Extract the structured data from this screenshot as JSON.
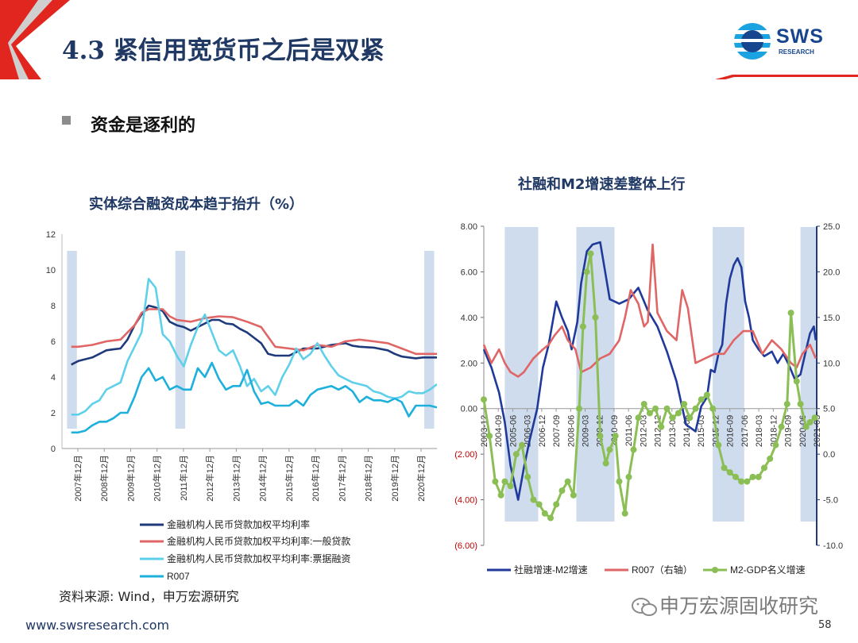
{
  "slide": {
    "title": "4.3 紧信用宽货币之后是双紧",
    "bullet": "资金是逐利的",
    "source": "资料来源: Wind，申万宏源研究",
    "footer_url": "www.swsresearch.com",
    "page_number": "58",
    "watermark": "申万宏源固收研究"
  },
  "logo": {
    "text": "SWS",
    "subtext": "RESEARCH"
  },
  "colors": {
    "brand_red": "#e0261f",
    "brand_blue": "#1f3864",
    "shade": "#c5d6ea"
  },
  "chart_data": [
    {
      "type": "line",
      "title": "实体综合融资成本趋于抬升（%）",
      "ylim": [
        0,
        12
      ],
      "yticks": [
        "0",
        "2",
        "4",
        "6",
        "8",
        "10",
        "12"
      ],
      "x_tick_labels": [
        "2007年12月",
        "2008年12月",
        "2009年12月",
        "2010年12月",
        "2011年12月",
        "2012年12月",
        "2013年12月",
        "2014年12月",
        "2015年12月",
        "2016年12月",
        "2017年12月",
        "2018年12月",
        "2019年12月",
        "2020年12月"
      ],
      "x_range": [
        2007.92,
        2021.25
      ],
      "shaded_ranges": [
        [
          2008.1,
          2008.45
        ],
        [
          2011.95,
          2012.3
        ],
        [
          2020.8,
          2021.15
        ]
      ],
      "series": [
        {
          "name": "金融机构人民币贷款加权平均利率",
          "color": "#1f3a7a",
          "x": [
            2008.25,
            2008.5,
            2008.75,
            2009.0,
            2009.25,
            2009.5,
            2009.75,
            2010.0,
            2010.25,
            2010.5,
            2010.75,
            2011.0,
            2011.25,
            2011.5,
            2011.75,
            2012.0,
            2012.25,
            2012.5,
            2012.75,
            2013.0,
            2013.25,
            2013.5,
            2013.75,
            2014.0,
            2014.25,
            2014.5,
            2014.75,
            2015.0,
            2015.25,
            2015.5,
            2015.75,
            2016.0,
            2016.5,
            2017.0,
            2017.5,
            2018.0,
            2018.25,
            2018.5,
            2019.0,
            2019.5,
            2019.75,
            2020.0,
            2020.25,
            2020.5,
            2020.75,
            2021.0,
            2021.25
          ],
          "y": [
            4.7,
            4.9,
            5.0,
            5.1,
            5.3,
            5.5,
            5.55,
            5.6,
            6.1,
            6.9,
            7.5,
            8.0,
            7.9,
            7.7,
            7.1,
            6.9,
            6.8,
            6.6,
            6.8,
            7.0,
            7.2,
            7.2,
            7.0,
            6.95,
            6.7,
            6.5,
            6.2,
            5.9,
            5.3,
            5.2,
            5.2,
            5.2,
            5.6,
            5.6,
            5.8,
            5.9,
            5.75,
            5.7,
            5.65,
            5.5,
            5.3,
            5.15,
            5.1,
            5.05,
            5.1,
            5.1,
            5.1
          ]
        },
        {
          "name": "金融机构人民币贷款加权平均利率:一般贷款",
          "color": "#e06666",
          "x": [
            2008.25,
            2008.5,
            2009.0,
            2009.5,
            2010.0,
            2010.5,
            2010.75,
            2011.0,
            2011.5,
            2011.75,
            2012.0,
            2012.5,
            2013.0,
            2013.5,
            2014.0,
            2014.5,
            2015.0,
            2015.5,
            2016.0,
            2016.5,
            2017.0,
            2017.5,
            2018.0,
            2018.5,
            2019.0,
            2019.5,
            2020.0,
            2020.5,
            2021.0,
            2021.25
          ],
          "y": [
            5.7,
            5.7,
            5.8,
            6.0,
            6.1,
            6.9,
            7.6,
            7.8,
            7.8,
            7.4,
            7.2,
            7.1,
            7.3,
            7.4,
            7.35,
            7.1,
            6.8,
            5.7,
            5.6,
            5.5,
            5.8,
            5.7,
            6.0,
            6.1,
            6.0,
            5.9,
            5.6,
            5.3,
            5.3,
            5.3
          ]
        },
        {
          "name": "金融机构人民币贷款加权平均利率:票据融资",
          "color": "#5fd0ea",
          "x": [
            2008.25,
            2008.5,
            2008.75,
            2009.0,
            2009.25,
            2009.5,
            2009.75,
            2010.0,
            2010.25,
            2010.5,
            2010.75,
            2011.0,
            2011.25,
            2011.5,
            2011.75,
            2012.0,
            2012.25,
            2012.5,
            2012.75,
            2013.0,
            2013.25,
            2013.5,
            2013.75,
            2014.0,
            2014.25,
            2014.5,
            2014.75,
            2015.0,
            2015.25,
            2015.5,
            2015.75,
            2016.0,
            2016.25,
            2016.5,
            2016.75,
            2017.0,
            2017.25,
            2017.5,
            2017.75,
            2018.0,
            2018.25,
            2018.5,
            2018.75,
            2019.0,
            2019.25,
            2019.5,
            2019.75,
            2020.0,
            2020.25,
            2020.5,
            2020.75,
            2021.0,
            2021.25
          ],
          "y": [
            1.9,
            1.9,
            2.1,
            2.5,
            2.7,
            3.3,
            3.5,
            3.7,
            4.9,
            5.7,
            6.5,
            9.5,
            9.0,
            6.4,
            6.0,
            5.2,
            4.6,
            5.8,
            6.8,
            7.5,
            6.5,
            5.5,
            5.2,
            5.5,
            4.6,
            3.5,
            3.9,
            3.2,
            3.5,
            3.0,
            4.0,
            4.7,
            5.6,
            5.0,
            5.3,
            5.9,
            5.2,
            4.6,
            4.1,
            3.9,
            3.7,
            3.6,
            3.5,
            3.2,
            3.1,
            2.9,
            2.8,
            2.9,
            3.2,
            3.1,
            3.1,
            3.3,
            3.6
          ]
        },
        {
          "name": "R007",
          "color": "#1eb0dc",
          "x": [
            2008.25,
            2008.5,
            2008.75,
            2009.0,
            2009.25,
            2009.5,
            2009.75,
            2010.0,
            2010.25,
            2010.5,
            2010.75,
            2011.0,
            2011.25,
            2011.5,
            2011.75,
            2012.0,
            2012.25,
            2012.5,
            2012.75,
            2013.0,
            2013.25,
            2013.5,
            2013.75,
            2014.0,
            2014.25,
            2014.5,
            2014.75,
            2015.0,
            2015.25,
            2015.5,
            2015.75,
            2016.0,
            2016.25,
            2016.5,
            2016.75,
            2017.0,
            2017.25,
            2017.5,
            2017.75,
            2018.0,
            2018.25,
            2018.5,
            2018.75,
            2019.0,
            2019.25,
            2019.5,
            2019.75,
            2020.0,
            2020.25,
            2020.5,
            2020.75,
            2021.0,
            2021.25
          ],
          "y": [
            0.9,
            0.9,
            1.0,
            1.3,
            1.5,
            1.5,
            1.7,
            2.0,
            2.0,
            2.9,
            4.0,
            4.5,
            3.8,
            4.0,
            3.3,
            3.5,
            3.3,
            3.3,
            4.5,
            4.0,
            4.8,
            3.9,
            3.3,
            3.5,
            3.5,
            4.4,
            3.2,
            2.5,
            2.6,
            2.4,
            2.4,
            2.4,
            2.7,
            2.4,
            3.0,
            3.3,
            3.4,
            3.5,
            3.3,
            3.5,
            3.2,
            2.6,
            2.9,
            2.7,
            2.7,
            2.6,
            2.8,
            2.6,
            1.8,
            2.4,
            2.4,
            2.4,
            2.3
          ]
        }
      ]
    },
    {
      "type": "line",
      "title": "社融和M2增速差整体上行",
      "ylim": [
        -6,
        8
      ],
      "yticks": [
        "(6.00)",
        "(4.00)",
        "(2.00)",
        "0.00",
        "2.00",
        "4.00",
        "6.00",
        "8.00"
      ],
      "y2lim": [
        -10,
        25
      ],
      "y2ticks": [
        "-10.0",
        "-5.0",
        "0.0",
        "5.0",
        "10.0",
        "15.0",
        "20.0",
        "25.0"
      ],
      "x_tick_labels": [
        "2003-12",
        "2004-09",
        "2005-06",
        "2006-03",
        "2006-12",
        "2007-09",
        "2008-06",
        "2009-03",
        "2009-12",
        "2010-09",
        "2011-06",
        "2012-03",
        "2012-12",
        "2013-09",
        "2014-06",
        "2015-03",
        "2015-12",
        "2016-09",
        "2017-06",
        "2018-03",
        "2018-12",
        "2019-09",
        "2020-06",
        "2021-03"
      ],
      "x_range": [
        2003.9,
        2021.35
      ],
      "shaded_ranges": [
        [
          2005.0,
          2006.75
        ],
        [
          2008.75,
          2010.75
        ],
        [
          2015.9,
          2017.55
        ],
        [
          2020.5,
          2021.3
        ]
      ],
      "series": [
        {
          "name": "社融增速-M2增速",
          "color": "#1f3a9a",
          "axis": "left",
          "x": [
            2003.9,
            2004.3,
            2004.7,
            2005.0,
            2005.3,
            2005.7,
            2006.0,
            2006.3,
            2006.7,
            2007.0,
            2007.3,
            2007.7,
            2008.0,
            2008.3,
            2008.5,
            2008.8,
            2009.0,
            2009.3,
            2009.6,
            2010.0,
            2010.5,
            2011.0,
            2011.5,
            2012.0,
            2012.5,
            2013.0,
            2013.5,
            2014.0,
            2014.5,
            2015.0,
            2015.3,
            2015.6,
            2015.8,
            2016.0,
            2016.2,
            2016.4,
            2016.6,
            2016.8,
            2017.0,
            2017.2,
            2017.4,
            2017.6,
            2017.8,
            2018.0,
            2018.3,
            2018.6,
            2019.0,
            2019.3,
            2019.6,
            2019.9,
            2020.2,
            2020.5,
            2020.8,
            2021.0,
            2021.2,
            2021.3
          ],
          "y": [
            2.6,
            1.8,
            0.7,
            -0.6,
            -2.5,
            -4.0,
            -2.6,
            -1.4,
            0.0,
            1.8,
            2.8,
            4.7,
            4.0,
            3.4,
            2.6,
            3.8,
            5.5,
            6.9,
            7.2,
            7.3,
            4.8,
            4.6,
            4.8,
            5.3,
            4.3,
            3.6,
            2.5,
            1.2,
            -0.7,
            -1.0,
            0.1,
            0.5,
            1.7,
            1.6,
            2.4,
            2.8,
            4.6,
            5.7,
            6.3,
            6.6,
            6.2,
            4.7,
            4.0,
            3.0,
            2.6,
            2.3,
            2.5,
            2.0,
            2.4,
            1.9,
            1.3,
            1.5,
            2.6,
            3.3,
            3.6,
            3.0
          ]
        },
        {
          "name": "R007（右轴）",
          "color": "#e06666",
          "axis": "right",
          "x": [
            2003.9,
            2004.3,
            2004.7,
            2005.0,
            2005.3,
            2005.7,
            2006.0,
            2006.5,
            2007.0,
            2007.3,
            2007.6,
            2008.0,
            2008.3,
            2008.7,
            2009.0,
            2009.5,
            2010.0,
            2010.5,
            2011.0,
            2011.3,
            2011.6,
            2012.0,
            2012.3,
            2012.5,
            2012.75,
            2013.0,
            2013.5,
            2014.0,
            2014.3,
            2014.6,
            2015.0,
            2015.5,
            2016.0,
            2016.5,
            2017.0,
            2017.5,
            2018.0,
            2018.5,
            2019.0,
            2019.5,
            2020.0,
            2020.3,
            2020.6,
            2021.0,
            2021.3
          ],
          "y": [
            12.0,
            10.0,
            11.5,
            10.0,
            9.0,
            8.5,
            9.0,
            10.5,
            11.5,
            12.0,
            13.0,
            14.0,
            12.5,
            11.5,
            9.0,
            9.5,
            10.5,
            11.0,
            12.5,
            15.0,
            18.0,
            16.5,
            14.0,
            14.5,
            23.0,
            15.5,
            13.5,
            12.5,
            18.0,
            16.0,
            10.0,
            10.5,
            11.0,
            11.0,
            12.5,
            13.5,
            13.5,
            11.0,
            12.5,
            11.5,
            10.0,
            9.5,
            11.0,
            12.0,
            10.5
          ]
        },
        {
          "name": "M2-GDP名义增速",
          "color": "#8bbf56",
          "axis": "right",
          "x": [
            2003.9,
            2004.2,
            2004.5,
            2004.8,
            2005.0,
            2005.3,
            2005.6,
            2005.9,
            2006.2,
            2006.5,
            2006.8,
            2007.1,
            2007.4,
            2007.7,
            2008.0,
            2008.3,
            2008.6,
            2008.9,
            2009.1,
            2009.3,
            2009.5,
            2009.75,
            2010.0,
            2010.3,
            2010.5,
            2010.8,
            2011.0,
            2011.3,
            2011.5,
            2011.75,
            2012.0,
            2012.3,
            2012.6,
            2012.9,
            2013.2,
            2013.5,
            2013.8,
            2014.1,
            2014.4,
            2014.7,
            2015.0,
            2015.3,
            2015.6,
            2015.9,
            2016.2,
            2016.5,
            2016.8,
            2017.1,
            2017.4,
            2017.7,
            2018.0,
            2018.3,
            2018.6,
            2018.9,
            2019.2,
            2019.5,
            2019.8,
            2020.0,
            2020.3,
            2020.5,
            2020.8,
            2021.0,
            2021.25
          ],
          "y": [
            6.0,
            2.0,
            -3.0,
            -4.5,
            -3.0,
            -3.5,
            0.0,
            1.0,
            -2.5,
            -5.0,
            -5.5,
            -6.5,
            -7.0,
            -5.5,
            -4.0,
            -3.0,
            -4.5,
            5.0,
            14.0,
            20.0,
            22.0,
            15.0,
            2.0,
            -1.0,
            0.5,
            2.0,
            -3.0,
            -6.5,
            -2.5,
            0.5,
            4.0,
            5.5,
            4.5,
            5.0,
            3.0,
            5.0,
            4.0,
            4.5,
            5.5,
            4.0,
            5.0,
            6.0,
            6.5,
            5.0,
            1.0,
            -1.5,
            -2.0,
            -2.5,
            -3.0,
            -3.0,
            -2.5,
            -2.5,
            -1.5,
            -0.5,
            1.0,
            3.0,
            5.5,
            15.5,
            8.0,
            5.5,
            3.0,
            3.5,
            4.0
          ]
        }
      ]
    }
  ]
}
